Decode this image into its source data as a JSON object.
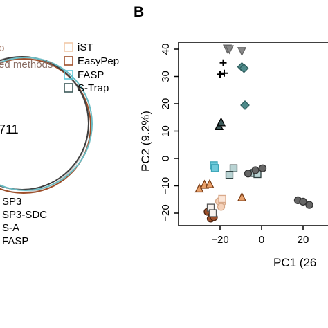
{
  "left_panel": {
    "cut_legend_tail": "o",
    "cut_legend_line": "ed methods",
    "venn_count": "711",
    "method_list": [
      "SP3",
      "SP3-SDC",
      "S-A",
      "FASP"
    ],
    "circle_colors": [
      "#c9c9c9",
      "#9e4f2a",
      "#3f3f3f",
      "#6bbcc4"
    ]
  },
  "legend": {
    "entries": [
      {
        "label": "iST",
        "color": "#f2c9a8"
      },
      {
        "label": "EasyPep",
        "color": "#9e4f2a"
      },
      {
        "label": "FASP",
        "color": "#5ec8d8"
      },
      {
        "label": "S-Trap",
        "color": "#3d5a5a"
      }
    ]
  },
  "panel_b": {
    "letter": "B"
  },
  "chart_data": {
    "type": "scatter",
    "xlabel": "PC1  (26",
    "ylabel": "PC2  (9.2%)",
    "xlim": [
      -32,
      30
    ],
    "ylim": [
      -24,
      43
    ],
    "x_ticks": [
      -20,
      0,
      20
    ],
    "y_ticks": [
      -20,
      -10,
      0,
      10,
      20,
      30,
      40
    ],
    "x_tick_labels": [
      "−20",
      "0",
      "20"
    ],
    "y_tick_labels": [
      "−20",
      "−10",
      "0",
      "10",
      "20",
      "30",
      "40"
    ],
    "grid": false,
    "series": [
      {
        "marker": "triangle-down",
        "color": "#888888",
        "edge": "#666666",
        "points": [
          [
            -16.5,
            40.2
          ],
          [
            -15.5,
            40.0
          ],
          [
            -9.5,
            39.3
          ]
        ]
      },
      {
        "marker": "plus",
        "color": "#000000",
        "edge": "#000000",
        "points": [
          [
            -18.5,
            35.0
          ],
          [
            -20.0,
            30.8
          ],
          [
            -18.0,
            31.2
          ]
        ]
      },
      {
        "marker": "diamond",
        "color": "#4e8b8b",
        "edge": "#2f5f5f",
        "points": [
          [
            -9.5,
            33.5
          ],
          [
            -8.5,
            33.0
          ],
          [
            -8.0,
            19.5
          ]
        ]
      },
      {
        "marker": "triangle",
        "color": "#3d5a5a",
        "edge": "#000000",
        "points": [
          [
            -20.5,
            11.8
          ],
          [
            -19.5,
            13.2
          ]
        ]
      },
      {
        "marker": "square",
        "color": "#6fcadb",
        "edge": "#3aa3b5",
        "points": [
          [
            -23.0,
            -2.5
          ],
          [
            -22.5,
            -3.5
          ]
        ]
      },
      {
        "marker": "square",
        "color": "#b9d3d3",
        "edge": "#2c3d3d",
        "points": [
          [
            -13.5,
            -3.6
          ],
          [
            -15.5,
            -6.0
          ],
          [
            -3.5,
            -5.3
          ],
          [
            -2.0,
            -5.7
          ]
        ]
      },
      {
        "marker": "circle",
        "color": "#666666",
        "edge": "#333333",
        "points": [
          [
            -6.5,
            -5.5
          ],
          [
            -3.0,
            -4.3
          ],
          [
            0.5,
            -3.6
          ],
          [
            17.5,
            -15.3
          ],
          [
            20.0,
            -15.8
          ],
          [
            23.0,
            -17.0
          ]
        ]
      },
      {
        "marker": "triangle",
        "color": "#e8a06a",
        "edge": "#7a3d16",
        "points": [
          [
            -30.0,
            -11.0
          ],
          [
            -27.5,
            -9.6
          ],
          [
            -25.0,
            -9.4
          ],
          [
            -9.5,
            -14.2
          ]
        ]
      },
      {
        "marker": "circle",
        "color": "#f6d2ba",
        "edge": "#d6a888",
        "points": [
          [
            -20.5,
            -15.7
          ],
          [
            -19.0,
            -16.1
          ],
          [
            -19.5,
            -17.7
          ]
        ]
      },
      {
        "marker": "square",
        "color": "#fbe6d8",
        "edge": "#d9a98a",
        "points": [
          [
            -19.0,
            -14.8
          ]
        ]
      },
      {
        "marker": "circle",
        "color": "#9e4f2a",
        "edge": "#4a2310",
        "points": [
          [
            -26.0,
            -19.5
          ],
          [
            -24.0,
            -21.0
          ],
          [
            -24.5,
            -22.0
          ],
          [
            -23.0,
            -21.5
          ]
        ]
      },
      {
        "marker": "square",
        "color": "#f7f2ee",
        "edge": "#555555",
        "points": [
          [
            -24.5,
            -18.0
          ],
          [
            -23.5,
            -20.0
          ]
        ]
      }
    ]
  }
}
